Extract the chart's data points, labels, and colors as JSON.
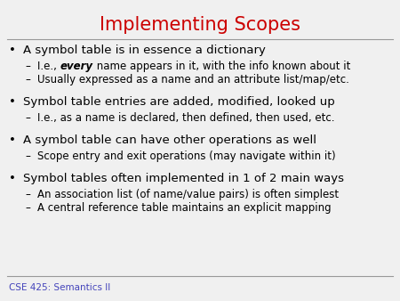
{
  "title": "Implementing Scopes",
  "title_color": "#CC0000",
  "title_fontsize": 15,
  "background_color": "#F0F0F0",
  "footer_text": "CSE 425: Semantics II",
  "footer_color": "#4444BB",
  "footer_fontsize": 7.5,
  "bullet_color": "#000000",
  "bullet_fontsize": 9.5,
  "sub_fontsize": 8.5,
  "line_color": "#999999",
  "bullets": [
    {
      "text": "A symbol table is in essence a dictionary",
      "subs": [
        {
          "prefix": "I.e., ",
          "bold": "every",
          "suffix": " name appears in it, with the info known about it"
        },
        {
          "prefix": "Usually expressed as a name and an attribute list/map/etc.",
          "bold": null,
          "suffix": ""
        }
      ]
    },
    {
      "text": "Symbol table entries are added, modified, looked up",
      "subs": [
        {
          "prefix": "I.e., as a name is declared, then defined, then used, etc.",
          "bold": null,
          "suffix": ""
        }
      ]
    },
    {
      "text": "A symbol table can have other operations as well",
      "subs": [
        {
          "prefix": "Scope entry and exit operations (may navigate within it)",
          "bold": null,
          "suffix": ""
        }
      ]
    },
    {
      "text": "Symbol tables often implemented in 1 of 2 main ways",
      "subs": [
        {
          "prefix": "An association list (of name/value pairs) is often simplest",
          "bold": null,
          "suffix": ""
        },
        {
          "prefix": "A central reference table maintains an explicit mapping",
          "bold": null,
          "suffix": ""
        }
      ]
    }
  ]
}
